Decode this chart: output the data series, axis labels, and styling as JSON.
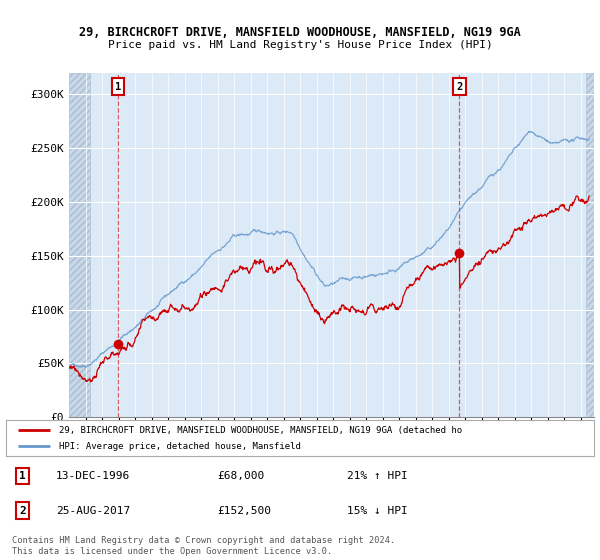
{
  "title_line1": "29, BIRCHCROFT DRIVE, MANSFIELD WOODHOUSE, MANSFIELD, NG19 9GA",
  "title_line2": "Price paid vs. HM Land Registry's House Price Index (HPI)",
  "ylim": [
    0,
    320000
  ],
  "xlim_start": 1994.0,
  "xlim_end": 2025.8,
  "yticks": [
    0,
    50000,
    100000,
    150000,
    200000,
    250000,
    300000
  ],
  "ytick_labels": [
    "£0",
    "£50K",
    "£100K",
    "£150K",
    "£200K",
    "£250K",
    "£300K"
  ],
  "background_color": "#ffffff",
  "plot_bg_color": "#dce9f7",
  "grid_color": "#ffffff",
  "sale1_date": 1996.96,
  "sale1_price": 68000,
  "sale2_date": 2017.65,
  "sale2_price": 152500,
  "red_line_color": "#cc0000",
  "blue_line_color": "#6699cc",
  "legend_label_red": "29, BIRCHCROFT DRIVE, MANSFIELD WOODHOUSE, MANSFIELD, NG19 9GA (detached ho",
  "legend_label_blue": "HPI: Average price, detached house, Mansfield",
  "table_row1": [
    "1",
    "13-DEC-1996",
    "£68,000",
    "21% ↑ HPI"
  ],
  "table_row2": [
    "2",
    "25-AUG-2017",
    "£152,500",
    "15% ↓ HPI"
  ],
  "footer_text": "Contains HM Land Registry data © Crown copyright and database right 2024.\nThis data is licensed under the Open Government Licence v3.0.",
  "hatch_left_end": 1995.3,
  "hatch_right_start": 2025.3
}
